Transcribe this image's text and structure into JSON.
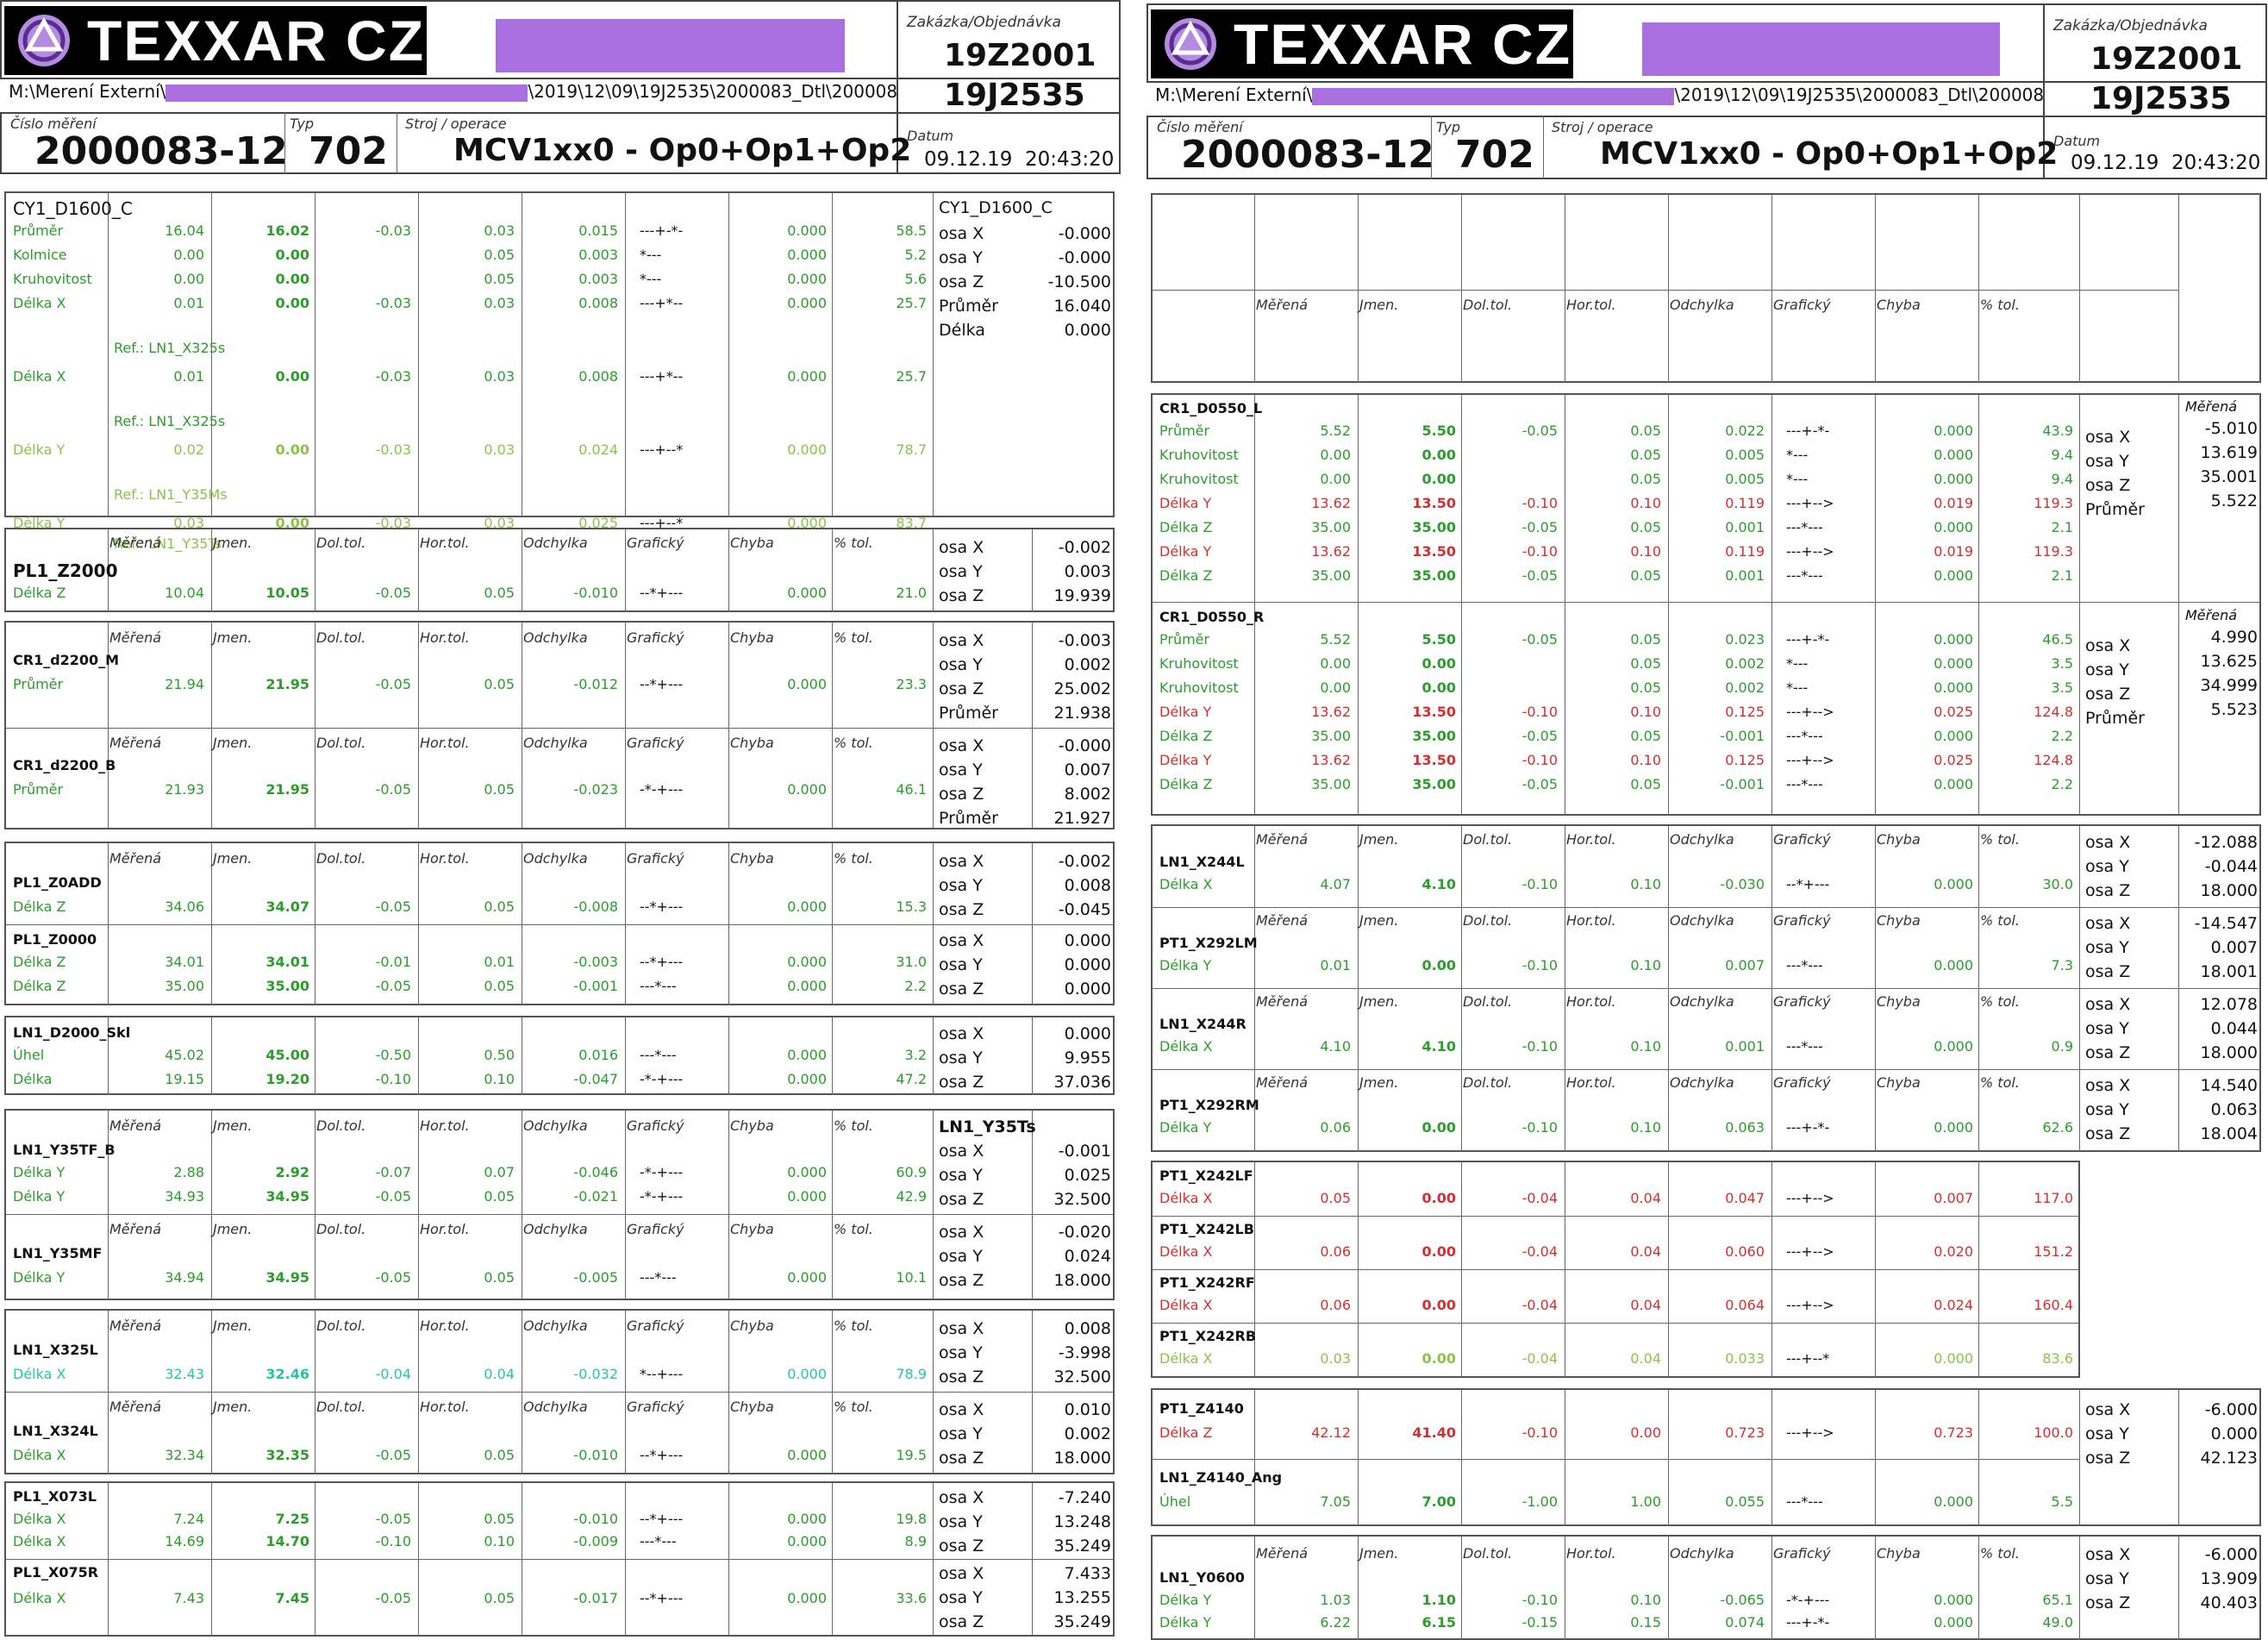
{
  "header": {
    "logo_text": "TEXXAR CZ",
    "zakazka_label": "Zakázka/Objednávka",
    "zakazka": "19Z2001",
    "objednavka": "19J2535",
    "path_prefix": "M:\\Merení Externí\\",
    "path_suffix": "\\2019\\12\\09\\19J2535\\2000083_Dtl\\200008",
    "cislo_label": "Číslo měření",
    "cislo": "2000083-12",
    "typ_label": "Typ",
    "typ": "702",
    "stroj_label": "Stroj / operace",
    "stroj": "MCV1xx0 - Op0+Op1+Op2",
    "datum_label": "Datum",
    "datum": "09.12.19  20:43:20"
  },
  "col_headers": [
    "Měřená",
    "Jmen.",
    "Dol.tol.",
    "Hor.tol.",
    "Odchylka",
    "Grafický",
    "Chyba",
    "% tol."
  ],
  "axis": {
    "x": "osa X",
    "y": "osa Y",
    "z": "osa Z",
    "prumer": "Průměr",
    "delka": "Délka"
  },
  "left": {
    "cy1": {
      "name": "CY1_D1600_C",
      "side_name": "CY1_D1600_C",
      "rows": [
        {
          "l": "Průměr",
          "m": "16.04",
          "j": "16.02",
          "d": "-0.03",
          "h": "0.03",
          "o": "0.015",
          "g": "---+-*-",
          "ch": "0.000",
          "p": "58.5"
        },
        {
          "l": "Kolmice",
          "m": "0.00",
          "j": "0.00",
          "d": "",
          "h": "0.05",
          "o": "0.003",
          "g": "*---",
          "ch": "0.000",
          "p": "5.2"
        },
        {
          "l": "Kruhovitost",
          "m": "0.00",
          "j": "0.00",
          "d": "",
          "h": "0.05",
          "o": "0.003",
          "g": "*---",
          "ch": "0.000",
          "p": "5.6"
        },
        {
          "l": "Délka X",
          "m": "0.01",
          "j": "0.00",
          "d": "-0.03",
          "h": "0.03",
          "o": "0.008",
          "g": "---+*--",
          "ch": "0.000",
          "p": "25.7"
        },
        {
          "l": "Ref.: LN1_X325s"
        },
        {
          "l": "Délka X",
          "m": "0.01",
          "j": "0.00",
          "d": "-0.03",
          "h": "0.03",
          "o": "0.008",
          "g": "---+*--",
          "ch": "0.000",
          "p": "25.7"
        },
        {
          "l": "Ref.: LN1_X325s"
        },
        {
          "l": "Délka Y",
          "m": "0.02",
          "j": "0.00",
          "d": "-0.03",
          "h": "0.03",
          "o": "0.024",
          "g": "---+--*",
          "ch": "0.000",
          "p": "78.7"
        },
        {
          "l": "Ref.: LN1_Y35Ms"
        },
        {
          "l": "Délka Y",
          "m": "0.03",
          "j": "0.00",
          "d": "-0.03",
          "h": "0.03",
          "o": "0.025",
          "g": "---+--*",
          "ch": "0.000",
          "p": "83.7"
        },
        {
          "l": "Ref.: LN1_Y35Ts"
        }
      ],
      "side": [
        "-0.000",
        "-0.000",
        "-10.500",
        "16.040",
        "0.000"
      ]
    },
    "pl1_z2000": {
      "name": "PL1_Z2000",
      "l": "Délka Z",
      "m": "10.04",
      "j": "10.05",
      "d": "-0.05",
      "h": "0.05",
      "o": "-0.010",
      "g": "--*+---",
      "ch": "0.000",
      "p": "21.0",
      "side": [
        "-0.002",
        "0.003",
        "19.939"
      ]
    },
    "cr1_m": {
      "name": "CR1_d2200_M",
      "l": "Průměr",
      "m": "21.94",
      "j": "21.95",
      "d": "-0.05",
      "h": "0.05",
      "o": "-0.012",
      "g": "--*+---",
      "ch": "0.000",
      "p": "23.3",
      "side": [
        "-0.003",
        "0.002",
        "25.002",
        "21.938"
      ]
    },
    "cr1_b": {
      "name": "CR1_d2200_B",
      "l": "Průměr",
      "m": "21.93",
      "j": "21.95",
      "d": "-0.05",
      "h": "0.05",
      "o": "-0.023",
      "g": "-*-+---",
      "ch": "0.000",
      "p": "46.1",
      "side": [
        "-0.000",
        "0.007",
        "8.002",
        "21.927"
      ]
    },
    "pl1_z0add": {
      "name": "PL1_Z0ADD",
      "l": "Délka Z",
      "m": "34.06",
      "j": "34.07",
      "d": "-0.05",
      "h": "0.05",
      "o": "-0.008",
      "g": "--*+---",
      "ch": "0.000",
      "p": "15.3",
      "side": [
        "-0.002",
        "0.008",
        "-0.045"
      ]
    },
    "pl1_z0000": {
      "name": "PL1_Z0000",
      "rows": [
        {
          "l": "Délka Z",
          "m": "34.01",
          "j": "34.01",
          "d": "-0.01",
          "h": "0.01",
          "o": "-0.003",
          "g": "--*+---",
          "ch": "0.000",
          "p": "31.0"
        },
        {
          "l": "Délka Z",
          "m": "35.00",
          "j": "35.00",
          "d": "-0.05",
          "h": "0.05",
          "o": "-0.001",
          "g": "---*---",
          "ch": "0.000",
          "p": "2.2"
        }
      ],
      "side": [
        "0.000",
        "0.000",
        "0.000"
      ]
    },
    "ln1_d2000": {
      "name": "LN1_D2000_Skl",
      "rows": [
        {
          "l": "Úhel",
          "m": "45.02",
          "j": "45.00",
          "d": "-0.50",
          "h": "0.50",
          "o": "0.016",
          "g": "---*---",
          "ch": "0.000",
          "p": "3.2"
        },
        {
          "l": "Délka",
          "m": "19.15",
          "j": "19.20",
          "d": "-0.10",
          "h": "0.10",
          "o": "-0.047",
          "g": "-*-+---",
          "ch": "0.000",
          "p": "47.2"
        }
      ],
      "side": [
        "0.000",
        "9.955",
        "37.036"
      ]
    },
    "ln1_y35tf": {
      "name": "LN1_Y35TF_B",
      "side_name": "LN1_Y35Ts",
      "rows": [
        {
          "l": "Délka Y",
          "m": "2.88",
          "j": "2.92",
          "d": "-0.07",
          "h": "0.07",
          "o": "-0.046",
          "g": "-*-+---",
          "ch": "0.000",
          "p": "60.9"
        },
        {
          "l": "Délka Y",
          "m": "34.93",
          "j": "34.95",
          "d": "-0.05",
          "h": "0.05",
          "o": "-0.021",
          "g": "-*-+---",
          "ch": "0.000",
          "p": "42.9"
        }
      ],
      "side": [
        "-0.001",
        "0.025",
        "32.500"
      ]
    },
    "ln1_y35mf": {
      "name": "LN1_Y35MF",
      "l": "Délka Y",
      "m": "34.94",
      "j": "34.95",
      "d": "-0.05",
      "h": "0.05",
      "o": "-0.005",
      "g": "---*---",
      "ch": "0.000",
      "p": "10.1",
      "side": [
        "-0.020",
        "0.024",
        "18.000"
      ]
    },
    "ln1_x325l": {
      "name": "LN1_X325L",
      "l": "Délka X",
      "m": "32.43",
      "j": "32.46",
      "d": "-0.04",
      "h": "0.04",
      "o": "-0.032",
      "g": "*--+---",
      "ch": "0.000",
      "p": "78.9",
      "side": [
        "0.008",
        "-3.998",
        "32.500"
      ]
    },
    "ln1_x324l": {
      "name": "LN1_X324L",
      "l": "Délka X",
      "m": "32.34",
      "j": "32.35",
      "d": "-0.05",
      "h": "0.05",
      "o": "-0.010",
      "g": "--*+---",
      "ch": "0.000",
      "p": "19.5",
      "side": [
        "0.010",
        "0.002",
        "18.000"
      ]
    },
    "pl1_x073l": {
      "name": "PL1_X073L",
      "rows": [
        {
          "l": "Délka X",
          "m": "7.24",
          "j": "7.25",
          "d": "-0.05",
          "h": "0.05",
          "o": "-0.010",
          "g": "--*+---",
          "ch": "0.000",
          "p": "19.8"
        },
        {
          "l": "Délka X",
          "m": "14.69",
          "j": "14.70",
          "d": "-0.10",
          "h": "0.10",
          "o": "-0.009",
          "g": "---*---",
          "ch": "0.000",
          "p": "8.9"
        }
      ],
      "side": [
        "-7.240",
        "13.248",
        "35.249"
      ]
    },
    "pl1_x075r": {
      "name": "PL1_X075R",
      "l": "Délka X",
      "m": "7.43",
      "j": "7.45",
      "d": "-0.05",
      "h": "0.05",
      "o": "-0.017",
      "g": "--*+---",
      "ch": "0.000",
      "p": "33.6",
      "side": [
        "7.433",
        "13.255",
        "35.249"
      ]
    }
  },
  "right": {
    "cr1_l": {
      "name": "CR1_D0550_L",
      "side_label": "Měřená",
      "rows": [
        {
          "l": "Průměr",
          "c": "g",
          "m": "5.52",
          "j": "5.50",
          "d": "-0.05",
          "h": "0.05",
          "o": "0.022",
          "g": "---+-*-",
          "ch": "0.000",
          "p": "43.9"
        },
        {
          "l": "Kruhovitost",
          "c": "g",
          "m": "0.00",
          "j": "0.00",
          "d": "",
          "h": "0.05",
          "o": "0.005",
          "g": "*---",
          "ch": "0.000",
          "p": "9.4"
        },
        {
          "l": "Kruhovitost",
          "c": "g",
          "m": "0.00",
          "j": "0.00",
          "d": "",
          "h": "0.05",
          "o": "0.005",
          "g": "*---",
          "ch": "0.000",
          "p": "9.4"
        },
        {
          "l": "Délka Y",
          "c": "rd",
          "m": "13.62",
          "j": "13.50",
          "d": "-0.10",
          "h": "0.10",
          "o": "0.119",
          "g": "---+-->",
          "ch": "0.019",
          "p": "119.3"
        },
        {
          "l": "Délka Z",
          "c": "g",
          "m": "35.00",
          "j": "35.00",
          "d": "-0.05",
          "h": "0.05",
          "o": "0.001",
          "g": "---*---",
          "ch": "0.000",
          "p": "2.1"
        },
        {
          "l": "Délka Y",
          "c": "rd",
          "m": "13.62",
          "j": "13.50",
          "d": "-0.10",
          "h": "0.10",
          "o": "0.119",
          "g": "---+-->",
          "ch": "0.019",
          "p": "119.3"
        },
        {
          "l": "Délka Z",
          "c": "g",
          "m": "35.00",
          "j": "35.00",
          "d": "-0.05",
          "h": "0.05",
          "o": "0.001",
          "g": "---*---",
          "ch": "0.000",
          "p": "2.1"
        }
      ],
      "side": [
        "-5.010",
        "13.619",
        "35.001",
        "5.522"
      ]
    },
    "cr1_r": {
      "name": "CR1_D0550_R",
      "side_label": "Měřená",
      "rows": [
        {
          "l": "Průměr",
          "c": "g",
          "m": "5.52",
          "j": "5.50",
          "d": "-0.05",
          "h": "0.05",
          "o": "0.023",
          "g": "---+-*-",
          "ch": "0.000",
          "p": "46.5"
        },
        {
          "l": "Kruhovitost",
          "c": "g",
          "m": "0.00",
          "j": "0.00",
          "d": "",
          "h": "0.05",
          "o": "0.002",
          "g": "*---",
          "ch": "0.000",
          "p": "3.5"
        },
        {
          "l": "Kruhovitost",
          "c": "g",
          "m": "0.00",
          "j": "0.00",
          "d": "",
          "h": "0.05",
          "o": "0.002",
          "g": "*---",
          "ch": "0.000",
          "p": "3.5"
        },
        {
          "l": "Délka Y",
          "c": "rd",
          "m": "13.62",
          "j": "13.50",
          "d": "-0.10",
          "h": "0.10",
          "o": "0.125",
          "g": "---+-->",
          "ch": "0.025",
          "p": "124.8"
        },
        {
          "l": "Délka Z",
          "c": "g",
          "m": "35.00",
          "j": "35.00",
          "d": "-0.05",
          "h": "0.05",
          "o": "-0.001",
          "g": "---*---",
          "ch": "0.000",
          "p": "2.2"
        },
        {
          "l": "Délka Y",
          "c": "rd",
          "m": "13.62",
          "j": "13.50",
          "d": "-0.10",
          "h": "0.10",
          "o": "0.125",
          "g": "---+-->",
          "ch": "0.025",
          "p": "124.8"
        },
        {
          "l": "Délka Z",
          "c": "g",
          "m": "35.00",
          "j": "35.00",
          "d": "-0.05",
          "h": "0.05",
          "o": "-0.001",
          "g": "---*---",
          "ch": "0.000",
          "p": "2.2"
        }
      ],
      "side": [
        "4.990",
        "13.625",
        "34.999",
        "5.523"
      ]
    },
    "ln1_x244l": {
      "name": "LN1_X244L",
      "l": "Délka X",
      "m": "4.07",
      "j": "4.10",
      "d": "-0.10",
      "h": "0.10",
      "o": "-0.030",
      "g": "--*+---",
      "ch": "0.000",
      "p": "30.0",
      "side": [
        "-12.088",
        "-0.044",
        "18.000"
      ]
    },
    "pt1_x292lm": {
      "name": "PT1_X292LM",
      "l": "Délka Y",
      "m": "0.01",
      "j": "0.00",
      "d": "-0.10",
      "h": "0.10",
      "o": "0.007",
      "g": "---*---",
      "ch": "0.000",
      "p": "7.3",
      "side": [
        "-14.547",
        "0.007",
        "18.001"
      ]
    },
    "ln1_x244r": {
      "name": "LN1_X244R",
      "l": "Délka X",
      "m": "4.10",
      "j": "4.10",
      "d": "-0.10",
      "h": "0.10",
      "o": "0.001",
      "g": "---*---",
      "ch": "0.000",
      "p": "0.9",
      "side": [
        "12.078",
        "0.044",
        "18.000"
      ]
    },
    "pt1_x292rm": {
      "name": "PT1_X292RM",
      "l": "Délka Y",
      "m": "0.06",
      "j": "0.00",
      "d": "-0.10",
      "h": "0.10",
      "o": "0.063",
      "g": "---+-*-",
      "ch": "0.000",
      "p": "62.6",
      "side": [
        "14.540",
        "0.063",
        "18.004"
      ]
    },
    "pt1_x242": [
      {
        "name": "PT1_X242LF",
        "c": "rd",
        "l": "Délka X",
        "m": "0.05",
        "j": "0.00",
        "d": "-0.04",
        "h": "0.04",
        "o": "0.047",
        "g": "---+-->",
        "ch": "0.007",
        "p": "117.0"
      },
      {
        "name": "PT1_X242LB",
        "c": "rd",
        "l": "Délka X",
        "m": "0.06",
        "j": "0.00",
        "d": "-0.04",
        "h": "0.04",
        "o": "0.060",
        "g": "---+-->",
        "ch": "0.020",
        "p": "151.2"
      },
      {
        "name": "PT1_X242RF",
        "c": "rd",
        "l": "Délka X",
        "m": "0.06",
        "j": "0.00",
        "d": "-0.04",
        "h": "0.04",
        "o": "0.064",
        "g": "---+-->",
        "ch": "0.024",
        "p": "160.4"
      },
      {
        "name": "PT1_X242RB",
        "c": "lg",
        "l": "Délka X",
        "m": "0.03",
        "j": "0.00",
        "d": "-0.04",
        "h": "0.04",
        "o": "0.033",
        "g": "---+--*",
        "ch": "0.000",
        "p": "83.6"
      }
    ],
    "pt1_z4140": {
      "name": "PT1_Z4140",
      "l": "Délka Z",
      "m": "42.12",
      "j": "41.40",
      "d": "-0.10",
      "h": "0.00",
      "o": "0.723",
      "g": "---+-->",
      "ch": "0.723",
      "p": "100.0",
      "side": [
        "-6.000",
        "0.000",
        "42.123"
      ]
    },
    "ln1_z4140": {
      "name": "LN1_Z4140_Ang",
      "l": "Úhel",
      "m": "7.05",
      "j": "7.00",
      "d": "-1.00",
      "h": "1.00",
      "o": "0.055",
      "g": "---*---",
      "ch": "0.000",
      "p": "5.5"
    },
    "ln1_y0600": {
      "name": "LN1_Y0600",
      "rows": [
        {
          "l": "Délka Y",
          "m": "1.03",
          "j": "1.10",
          "d": "-0.10",
          "h": "0.10",
          "o": "-0.065",
          "g": "-*-+---",
          "ch": "0.000",
          "p": "65.1"
        },
        {
          "l": "Délka Y",
          "m": "6.22",
          "j": "6.15",
          "d": "-0.15",
          "h": "0.15",
          "o": "0.074",
          "g": "---+-*-",
          "ch": "0.000",
          "p": "49.0"
        }
      ],
      "side": [
        "-6.000",
        "13.909",
        "40.403"
      ]
    }
  }
}
